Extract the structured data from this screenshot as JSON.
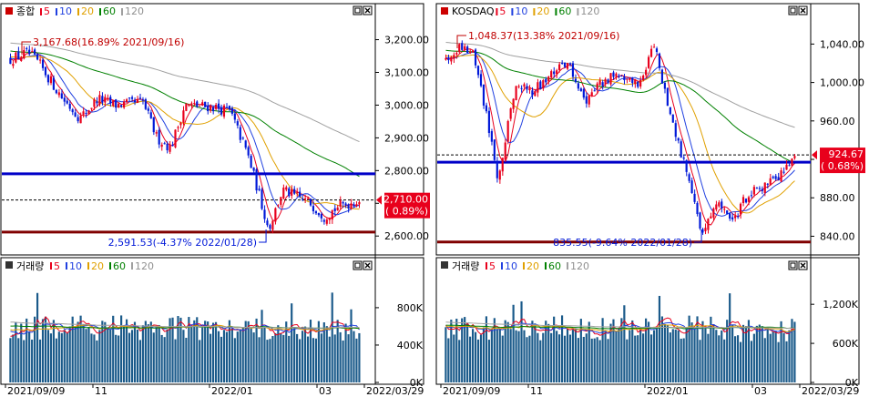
{
  "panels": [
    {
      "id": "kospi",
      "title": "종합",
      "ma_labels": [
        "5",
        "10",
        "20",
        "60",
        "120"
      ],
      "ma_colors": [
        "#e8001c",
        "#2040e0",
        "#e0a000",
        "#008000",
        "#a0a0a0"
      ],
      "price": {
        "y_ticks": [
          "3,200.00",
          "3,100.00",
          "3,000.00",
          "2,900.00",
          "2,800.00",
          "2,700.00",
          "2,600.00"
        ],
        "y_values": [
          3200,
          3100,
          3000,
          2900,
          2800,
          2700,
          2600
        ],
        "ylim": [
          2570,
          3260
        ],
        "current_value": "2,710.00",
        "current_change": "( 0.89%)",
        "current": 2710,
        "hi_label": "3,167.68(16.89% 2021/09/16)",
        "lo_label": "2,591.53(-4.37% 2022/01/28)",
        "blue_line": 2790,
        "red_line": 2612
      },
      "volume": {
        "title": "거래량",
        "y_ticks": [
          "800K",
          "400K",
          "0K"
        ],
        "y_values": [
          800000,
          400000,
          0
        ],
        "ylim": [
          0,
          1150000
        ]
      }
    },
    {
      "id": "kosdaq",
      "title": "KOSDAQ",
      "ma_labels": [
        "5",
        "10",
        "20",
        "60",
        "120"
      ],
      "ma_colors": [
        "#e8001c",
        "#2040e0",
        "#e0a000",
        "#008000",
        "#a0a0a0"
      ],
      "price": {
        "y_ticks": [
          "1,040.00",
          "1,000.00",
          "960.00",
          "920.00",
          "880.00",
          "840.00"
        ],
        "y_values": [
          1040,
          1000,
          960,
          920,
          880,
          840
        ],
        "ylim": [
          830,
          1065
        ],
        "current_value": "924.67",
        "current_change": "( 0.68%)",
        "current": 924.67,
        "hi_label": "1,048.37(13.38% 2021/09/16)",
        "lo_label": "835.55(-9.64% 2022/01/28)",
        "blue_line": 917,
        "red_line": 834
      },
      "volume": {
        "title": "거래량",
        "y_ticks": [
          "1,200K",
          "600K",
          "0K"
        ],
        "y_values": [
          1200000,
          600000,
          0
        ],
        "ylim": [
          0,
          1650000
        ]
      }
    }
  ],
  "x_labels": [
    "2021/09/09",
    "11",
    "2022/01",
    "03",
    "2022/03/29"
  ],
  "chart_data": [
    {
      "type": "candlestick",
      "title": "종합",
      "x": [
        "2021/09/09",
        "11",
        "2022/01",
        "03",
        "2022/03/29"
      ],
      "series": [
        {
          "name": "종합",
          "points": [
            {
              "date": "2021/09/16",
              "value": 3167.68,
              "label": "high"
            },
            {
              "date": "2022/01/28",
              "value": 2591.53,
              "label": "low"
            },
            {
              "date": "2022/03/29",
              "value": 2710.0,
              "label": "current"
            }
          ]
        }
      ],
      "y_ticks": [
        3200,
        3100,
        3000,
        2900,
        2800,
        2700,
        2600
      ],
      "ylim": [
        2570,
        3260
      ],
      "legend": [
        "5",
        "10",
        "20",
        "60",
        "120"
      ]
    },
    {
      "type": "candlestick",
      "title": "KOSDAQ",
      "x": [
        "2021/09/09",
        "11",
        "2022/01",
        "03",
        "2022/03/29"
      ],
      "series": [
        {
          "name": "KOSDAQ",
          "points": [
            {
              "date": "2021/09/16",
              "value": 1048.37,
              "label": "high"
            },
            {
              "date": "2022/01/28",
              "value": 835.55,
              "label": "low"
            },
            {
              "date": "2022/03/29",
              "value": 924.67,
              "label": "current"
            }
          ]
        }
      ],
      "y_ticks": [
        1040,
        1000,
        960,
        920,
        880,
        840
      ],
      "ylim": [
        830,
        1065
      ],
      "legend": [
        "5",
        "10",
        "20",
        "60",
        "120"
      ]
    },
    {
      "type": "bar",
      "title": "거래량",
      "y_ticks": [
        800000,
        400000,
        0
      ],
      "ylim": [
        0,
        1150000
      ]
    },
    {
      "type": "bar",
      "title": "거래량",
      "y_ticks": [
        1200000,
        600000,
        0
      ],
      "ylim": [
        0,
        1650000
      ]
    }
  ]
}
